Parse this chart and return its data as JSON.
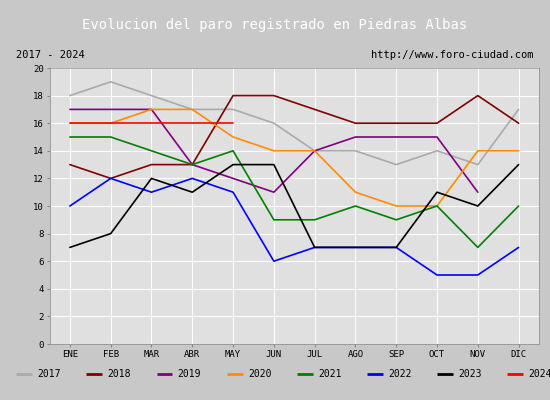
{
  "title": "Evolucion del paro registrado en Piedras Albas",
  "subtitle_left": "2017 - 2024",
  "subtitle_right": "http://www.foro-ciudad.com",
  "months": [
    "ENE",
    "FEB",
    "MAR",
    "ABR",
    "MAY",
    "JUN",
    "JUL",
    "AGO",
    "SEP",
    "OCT",
    "NOV",
    "DIC"
  ],
  "series": {
    "2017": {
      "color": "#aaaaaa",
      "data": [
        18,
        19,
        18,
        17,
        17,
        16,
        14,
        14,
        13,
        14,
        13,
        17
      ]
    },
    "2018": {
      "color": "#800000",
      "data": [
        13,
        12,
        13,
        13,
        18,
        18,
        17,
        16,
        16,
        16,
        18,
        16
      ]
    },
    "2019": {
      "color": "#800080",
      "data": [
        17,
        17,
        17,
        13,
        12,
        11,
        14,
        15,
        15,
        15,
        11,
        null
      ]
    },
    "2020": {
      "color": "#ff8c00",
      "data": [
        16,
        16,
        17,
        17,
        15,
        14,
        14,
        11,
        10,
        10,
        14,
        14
      ]
    },
    "2021": {
      "color": "#008000",
      "data": [
        15,
        15,
        14,
        13,
        14,
        9,
        9,
        10,
        9,
        10,
        7,
        10
      ]
    },
    "2022": {
      "color": "#0000ff",
      "data": [
        10,
        12,
        11,
        12,
        11,
        6,
        7,
        7,
        7,
        5,
        5,
        7
      ]
    },
    "2023": {
      "color": "#000000",
      "data": [
        7,
        8,
        12,
        11,
        13,
        13,
        7,
        7,
        7,
        11,
        10,
        13
      ]
    },
    "2024": {
      "color": "#ff0000",
      "data": [
        16,
        16,
        16,
        16,
        16,
        null,
        null,
        null,
        null,
        null,
        null,
        null
      ]
    }
  },
  "ylim": [
    0,
    20
  ],
  "yticks": [
    0,
    2,
    4,
    6,
    8,
    10,
    12,
    14,
    16,
    18,
    20
  ],
  "fig_bg": "#c8c8c8",
  "plot_bg": "#e0e0e0",
  "title_bg": "#3060c0",
  "title_color": "#ffffff",
  "header_bg": "#ffffff",
  "legend_bg": "#ffffff",
  "grid_color": "#ffffff",
  "title_fontsize": 10,
  "subtitle_fontsize": 7.5,
  "tick_fontsize": 6.5,
  "legend_fontsize": 7
}
